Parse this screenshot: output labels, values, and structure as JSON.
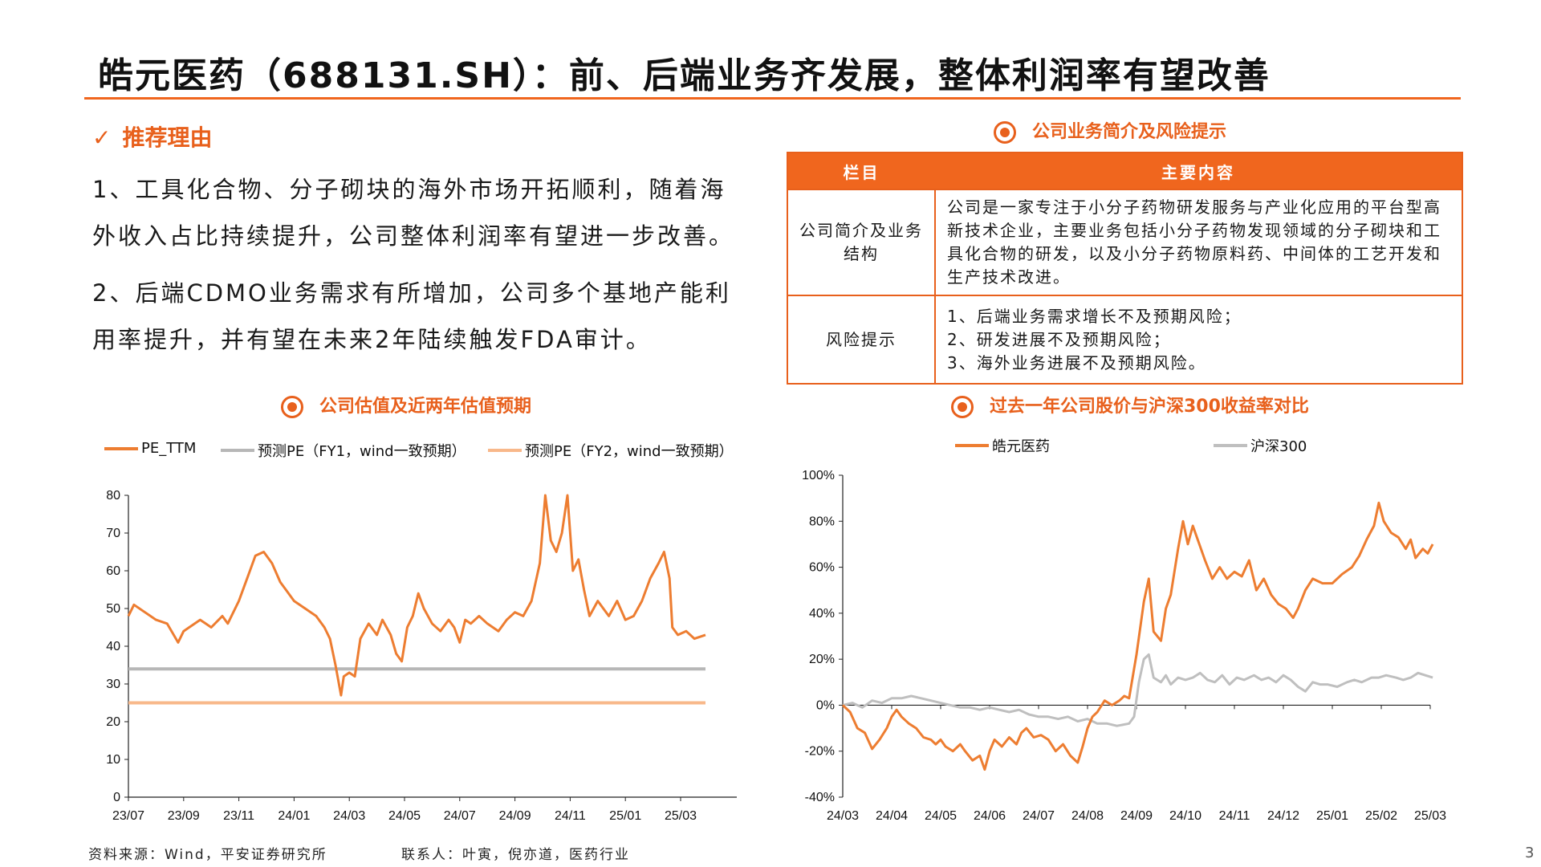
{
  "title": "皓元医药（688131.SH）：前、后端业务齐发展，整体利润率有望改善",
  "recommend": {
    "heading": "推荐理由",
    "points": [
      "1、工具化合物、分子砌块的海外市场开拓顺利，随着海外收入占比持续提升，公司整体利润率有望进一步改善。",
      "2、后端CDMO业务需求有所增加，公司多个基地产能利用率提升，并有望在未来2年陆续触发FDA审计。"
    ]
  },
  "info_table": {
    "title": "公司业务简介及风险提示",
    "headers": [
      "栏目",
      "主要内容"
    ],
    "rows": [
      {
        "label": "公司简介及业务结构",
        "content": "公司是一家专注于小分子药物研发服务与产业化应用的平台型高新技术企业，主要业务包括小分子药物发现领域的分子砌块和工具化合物的研发，以及小分子药物原料药、中间体的工艺开发和生产技术改进。"
      },
      {
        "label": "风险提示",
        "lines": [
          "1、后端业务需求增长不及预期风险；",
          "2、研发进展不及预期风险；",
          "3、海外业务进展不及预期风险。"
        ]
      }
    ]
  },
  "chart_left_title": "公司估值及近两年估值预期",
  "chart_right_title": "过去一年公司股价与沪深300收益率对比",
  "footer": {
    "source": "资料来源：Wind，平安证券研究所",
    "contact": "联系人：叶寅，倪亦道，医药行业"
  },
  "page_number": "3",
  "chart_data": [
    {
      "type": "line",
      "legend": [
        "PE_TTM",
        "预测PE（FY1，wind一致预期）",
        "预测PE（FY2，wind一致预期）"
      ],
      "x_ticks": [
        "23/07",
        "23/09",
        "23/11",
        "24/01",
        "24/03",
        "24/05",
        "24/07",
        "24/09",
        "24/11",
        "25/01",
        "25/03"
      ],
      "y_ticks": [
        "0",
        "10",
        "20",
        "30",
        "40",
        "50",
        "60",
        "70",
        "80"
      ],
      "ylim": [
        0,
        80
      ],
      "series": [
        {
          "name": "PE_TTM",
          "color": "#ed7d31",
          "width": 3,
          "points": [
            [
              0,
              48
            ],
            [
              0.1,
              51
            ],
            [
              0.3,
              49
            ],
            [
              0.5,
              47
            ],
            [
              0.7,
              46
            ],
            [
              0.9,
              41
            ],
            [
              1.0,
              44
            ],
            [
              1.1,
              45
            ],
            [
              1.3,
              47
            ],
            [
              1.5,
              45
            ],
            [
              1.7,
              48
            ],
            [
              1.8,
              46
            ],
            [
              2.0,
              52
            ],
            [
              2.1,
              56
            ],
            [
              2.2,
              60
            ],
            [
              2.3,
              64
            ],
            [
              2.45,
              65
            ],
            [
              2.6,
              62
            ],
            [
              2.75,
              57
            ],
            [
              2.85,
              55
            ],
            [
              3.0,
              52
            ],
            [
              3.2,
              50
            ],
            [
              3.4,
              48
            ],
            [
              3.55,
              45
            ],
            [
              3.65,
              42
            ],
            [
              3.75,
              35
            ],
            [
              3.85,
              27
            ],
            [
              3.9,
              32
            ],
            [
              4.0,
              33
            ],
            [
              4.1,
              32
            ],
            [
              4.2,
              42
            ],
            [
              4.35,
              46
            ],
            [
              4.5,
              43
            ],
            [
              4.6,
              47
            ],
            [
              4.75,
              43
            ],
            [
              4.85,
              38
            ],
            [
              4.95,
              36
            ],
            [
              5.05,
              45
            ],
            [
              5.15,
              48
            ],
            [
              5.25,
              54
            ],
            [
              5.35,
              50
            ],
            [
              5.5,
              46
            ],
            [
              5.65,
              44
            ],
            [
              5.8,
              47
            ],
            [
              5.9,
              45
            ],
            [
              6.0,
              41
            ],
            [
              6.1,
              47
            ],
            [
              6.2,
              46
            ],
            [
              6.35,
              48
            ],
            [
              6.5,
              46
            ],
            [
              6.7,
              44
            ],
            [
              6.85,
              47
            ],
            [
              7.0,
              49
            ],
            [
              7.15,
              48
            ],
            [
              7.3,
              52
            ],
            [
              7.45,
              62
            ],
            [
              7.55,
              80
            ],
            [
              7.65,
              68
            ],
            [
              7.75,
              65
            ],
            [
              7.85,
              70
            ],
            [
              7.95,
              80
            ],
            [
              8.05,
              60
            ],
            [
              8.15,
              63
            ],
            [
              8.25,
              55
            ],
            [
              8.35,
              48
            ],
            [
              8.5,
              52
            ],
            [
              8.7,
              48
            ],
            [
              8.85,
              52
            ],
            [
              9.0,
              47
            ],
            [
              9.15,
              48
            ],
            [
              9.3,
              52
            ],
            [
              9.45,
              58
            ],
            [
              9.6,
              62
            ],
            [
              9.7,
              65
            ],
            [
              9.8,
              58
            ],
            [
              9.85,
              45
            ],
            [
              9.95,
              43
            ],
            [
              10.1,
              44
            ],
            [
              10.25,
              42
            ],
            [
              10.45,
              43
            ]
          ]
        },
        {
          "name": "预测PE（FY1，wind一致预期）",
          "color": "#b7b7b7",
          "width": 4,
          "points": [
            [
              0,
              34
            ],
            [
              10.45,
              34
            ]
          ]
        },
        {
          "name": "预测PE（FY2，wind一致预期）",
          "color": "#f8b88a",
          "width": 4,
          "points": [
            [
              0,
              25
            ],
            [
              10.45,
              25
            ]
          ]
        }
      ]
    },
    {
      "type": "line",
      "legend": [
        "皓元医药",
        "沪深300"
      ],
      "x_ticks": [
        "24/03",
        "24/04",
        "24/05",
        "24/06",
        "24/07",
        "24/08",
        "24/09",
        "24/10",
        "24/11",
        "24/12",
        "25/01",
        "25/02",
        "25/03"
      ],
      "y_ticks": [
        "100%",
        "80%",
        "60%",
        "40%",
        "20%",
        "0%",
        "-20%",
        "-40%"
      ],
      "ylim": [
        -40,
        100
      ],
      "series": [
        {
          "name": "皓元医药",
          "color": "#ed7d31",
          "width": 3,
          "points": [
            [
              0,
              0
            ],
            [
              0.15,
              -3
            ],
            [
              0.3,
              -10
            ],
            [
              0.45,
              -12
            ],
            [
              0.6,
              -19
            ],
            [
              0.75,
              -15
            ],
            [
              0.9,
              -10
            ],
            [
              1.0,
              -5
            ],
            [
              1.1,
              -2
            ],
            [
              1.2,
              -5
            ],
            [
              1.35,
              -8
            ],
            [
              1.5,
              -10
            ],
            [
              1.65,
              -14
            ],
            [
              1.8,
              -15
            ],
            [
              1.9,
              -17
            ],
            [
              2.0,
              -15
            ],
            [
              2.1,
              -18
            ],
            [
              2.25,
              -20
            ],
            [
              2.4,
              -17
            ],
            [
              2.5,
              -20
            ],
            [
              2.65,
              -24
            ],
            [
              2.8,
              -22
            ],
            [
              2.9,
              -28
            ],
            [
              3.0,
              -20
            ],
            [
              3.1,
              -15
            ],
            [
              3.25,
              -18
            ],
            [
              3.4,
              -14
            ],
            [
              3.55,
              -17
            ],
            [
              3.65,
              -12
            ],
            [
              3.75,
              -10
            ],
            [
              3.9,
              -14
            ],
            [
              4.05,
              -13
            ],
            [
              4.2,
              -15
            ],
            [
              4.35,
              -20
            ],
            [
              4.5,
              -17
            ],
            [
              4.65,
              -22
            ],
            [
              4.8,
              -25
            ],
            [
              4.9,
              -18
            ],
            [
              5.0,
              -10
            ],
            [
              5.1,
              -5
            ],
            [
              5.2,
              -3
            ],
            [
              5.35,
              2
            ],
            [
              5.5,
              0
            ],
            [
              5.65,
              2
            ],
            [
              5.75,
              4
            ],
            [
              5.85,
              3
            ],
            [
              6.0,
              22
            ],
            [
              6.15,
              45
            ],
            [
              6.25,
              55
            ],
            [
              6.35,
              32
            ],
            [
              6.5,
              28
            ],
            [
              6.6,
              42
            ],
            [
              6.7,
              48
            ],
            [
              6.85,
              68
            ],
            [
              6.95,
              80
            ],
            [
              7.05,
              70
            ],
            [
              7.15,
              78
            ],
            [
              7.25,
              72
            ],
            [
              7.4,
              63
            ],
            [
              7.55,
              55
            ],
            [
              7.7,
              60
            ],
            [
              7.85,
              55
            ],
            [
              8.0,
              58
            ],
            [
              8.15,
              56
            ],
            [
              8.3,
              63
            ],
            [
              8.45,
              50
            ],
            [
              8.6,
              55
            ],
            [
              8.75,
              48
            ],
            [
              8.9,
              44
            ],
            [
              9.05,
              42
            ],
            [
              9.2,
              38
            ],
            [
              9.3,
              42
            ],
            [
              9.45,
              50
            ],
            [
              9.6,
              55
            ],
            [
              9.8,
              53
            ],
            [
              10.0,
              53
            ],
            [
              10.2,
              57
            ],
            [
              10.4,
              60
            ],
            [
              10.55,
              65
            ],
            [
              10.7,
              72
            ],
            [
              10.85,
              78
            ],
            [
              10.95,
              88
            ],
            [
              11.05,
              80
            ],
            [
              11.2,
              75
            ],
            [
              11.35,
              73
            ],
            [
              11.5,
              68
            ],
            [
              11.6,
              72
            ],
            [
              11.7,
              64
            ],
            [
              11.85,
              68
            ],
            [
              11.95,
              66
            ],
            [
              12.05,
              70
            ]
          ]
        },
        {
          "name": "沪深300",
          "color": "#bfbfbf",
          "width": 3,
          "points": [
            [
              0,
              0
            ],
            [
              0.2,
              1
            ],
            [
              0.4,
              -1
            ],
            [
              0.6,
              2
            ],
            [
              0.8,
              1
            ],
            [
              1.0,
              3
            ],
            [
              1.2,
              3
            ],
            [
              1.4,
              4
            ],
            [
              1.6,
              3
            ],
            [
              1.8,
              2
            ],
            [
              2.0,
              1
            ],
            [
              2.2,
              0
            ],
            [
              2.4,
              -1
            ],
            [
              2.6,
              -1
            ],
            [
              2.8,
              -2
            ],
            [
              3.0,
              -1
            ],
            [
              3.2,
              -2
            ],
            [
              3.4,
              -3
            ],
            [
              3.6,
              -2
            ],
            [
              3.8,
              -4
            ],
            [
              4.0,
              -5
            ],
            [
              4.2,
              -5
            ],
            [
              4.4,
              -6
            ],
            [
              4.6,
              -5
            ],
            [
              4.8,
              -7
            ],
            [
              5.0,
              -6
            ],
            [
              5.2,
              -8
            ],
            [
              5.4,
              -8
            ],
            [
              5.6,
              -9
            ],
            [
              5.85,
              -8
            ],
            [
              5.95,
              -5
            ],
            [
              6.05,
              10
            ],
            [
              6.15,
              20
            ],
            [
              6.25,
              22
            ],
            [
              6.35,
              12
            ],
            [
              6.5,
              10
            ],
            [
              6.6,
              13
            ],
            [
              6.7,
              9
            ],
            [
              6.85,
              12
            ],
            [
              7.0,
              11
            ],
            [
              7.15,
              12
            ],
            [
              7.3,
              14
            ],
            [
              7.45,
              11
            ],
            [
              7.6,
              10
            ],
            [
              7.75,
              13
            ],
            [
              7.9,
              9
            ],
            [
              8.05,
              12
            ],
            [
              8.2,
              11
            ],
            [
              8.4,
              13
            ],
            [
              8.55,
              11
            ],
            [
              8.7,
              12
            ],
            [
              8.85,
              10
            ],
            [
              9.0,
              13
            ],
            [
              9.15,
              11
            ],
            [
              9.3,
              8
            ],
            [
              9.45,
              6
            ],
            [
              9.6,
              10
            ],
            [
              9.75,
              9
            ],
            [
              9.9,
              9
            ],
            [
              10.1,
              8
            ],
            [
              10.3,
              10
            ],
            [
              10.45,
              11
            ],
            [
              10.6,
              10
            ],
            [
              10.8,
              12
            ],
            [
              10.95,
              12
            ],
            [
              11.1,
              13
            ],
            [
              11.3,
              12
            ],
            [
              11.45,
              11
            ],
            [
              11.6,
              12
            ],
            [
              11.75,
              14
            ],
            [
              11.9,
              13
            ],
            [
              12.05,
              12
            ]
          ]
        }
      ]
    }
  ]
}
